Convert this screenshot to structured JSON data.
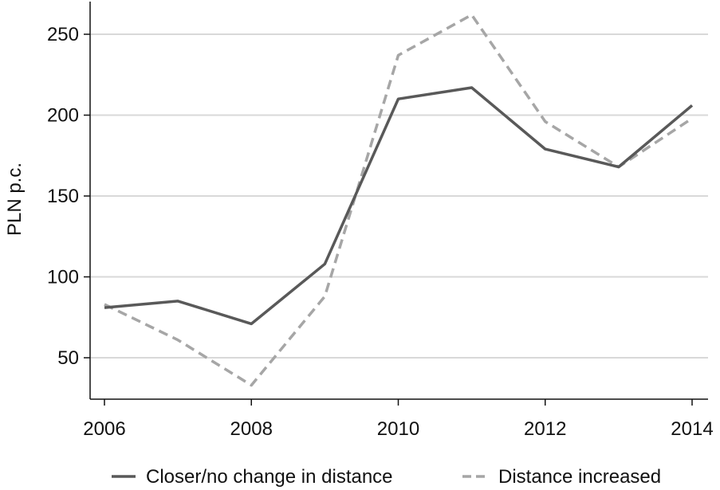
{
  "chart_data": {
    "type": "line",
    "title": "",
    "xlabel": "",
    "ylabel": "PLN p.c.",
    "x": [
      2006,
      2007,
      2008,
      2009,
      2010,
      2011,
      2012,
      2013,
      2014
    ],
    "x_ticks": [
      "2006",
      "2008",
      "2010",
      "2012",
      "2014"
    ],
    "y_ticks": [
      "50",
      "100",
      "150",
      "200",
      "250"
    ],
    "xlim": [
      2006,
      2014
    ],
    "ylim": [
      25,
      270
    ],
    "grid": true,
    "legend_position": "bottom",
    "series": [
      {
        "name": "Closer/no change in distance",
        "values": [
          81,
          85,
          71,
          108,
          210,
          217,
          179,
          168,
          206
        ],
        "color": "#595959",
        "style": "solid"
      },
      {
        "name": "Distance increased",
        "values": [
          83,
          61,
          33,
          88,
          237,
          262,
          196,
          168,
          198
        ],
        "color": "#a6a6a6",
        "style": "dashed"
      }
    ]
  }
}
